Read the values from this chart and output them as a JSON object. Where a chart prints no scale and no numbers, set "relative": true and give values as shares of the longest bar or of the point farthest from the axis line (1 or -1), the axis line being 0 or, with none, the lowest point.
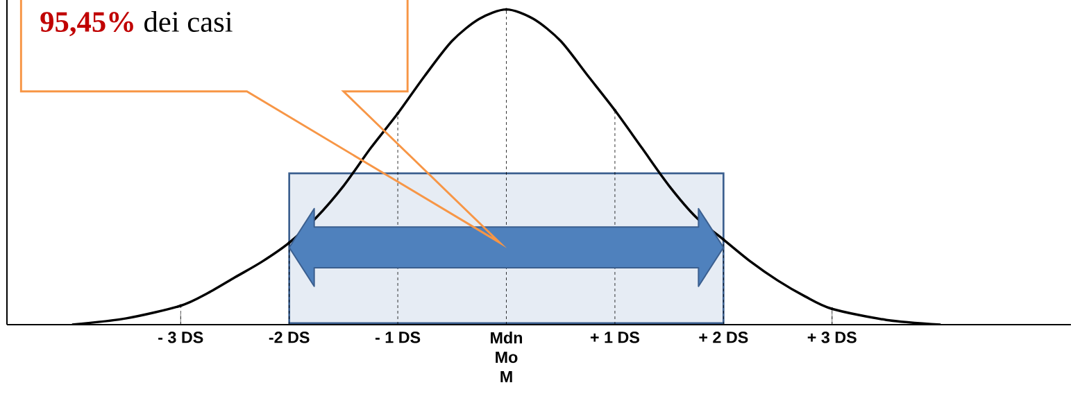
{
  "chart_data": {
    "type": "line",
    "relative": true,
    "marker": "none",
    "xlim": [
      -4.6,
      5.2
    ],
    "xticks": [
      {
        "value": -3,
        "label": "- 3 DS"
      },
      {
        "value": -2,
        "label": "-2 DS"
      },
      {
        "value": -1,
        "label": "- 1 DS"
      },
      {
        "value": 0,
        "label": "Mdn Mo M"
      },
      {
        "value": 1,
        "label": "+ 1 DS"
      },
      {
        "value": 2,
        "label": "+ 2 DS"
      },
      {
        "value": 3,
        "label": "+ 3 DS"
      }
    ],
    "series": [
      {
        "color": "#000000",
        "x": [
          -4,
          -3.5,
          -3,
          -2.75,
          -2.5,
          -2.25,
          -2,
          -1.75,
          -1.5,
          -1.25,
          -1,
          -0.75,
          -0.5,
          -0.25,
          0,
          0.25,
          0.5,
          0.75,
          1,
          1.25,
          1.5,
          1.75,
          2,
          2.25,
          2.5,
          2.75,
          3,
          3.5,
          4
        ],
        "values": [
          0,
          0.02,
          0.06,
          0.1,
          0.15,
          0.2,
          0.26,
          0.34,
          0.44,
          0.56,
          0.67,
          0.79,
          0.9,
          0.97,
          1,
          0.97,
          0.9,
          0.79,
          0.68,
          0.56,
          0.44,
          0.34,
          0.27,
          0.2,
          0.14,
          0.09,
          0.05,
          0.015,
          0
        ]
      },
      {
        "type": "lollipop",
        "color": "#000000",
        "line_style": "dashed",
        "x": [
          -3,
          -2,
          -1,
          0,
          1,
          2,
          3
        ],
        "values": [
          0.06,
          0.26,
          0.67,
          1,
          0.68,
          0.27,
          0.05
        ]
      }
    ],
    "bands": [
      {
        "axis": "x",
        "from": -2,
        "to": 2,
        "color": "#e6ecf4"
      }
    ],
    "annotations": [
      "**95,45%** dei casi"
    ]
  }
}
